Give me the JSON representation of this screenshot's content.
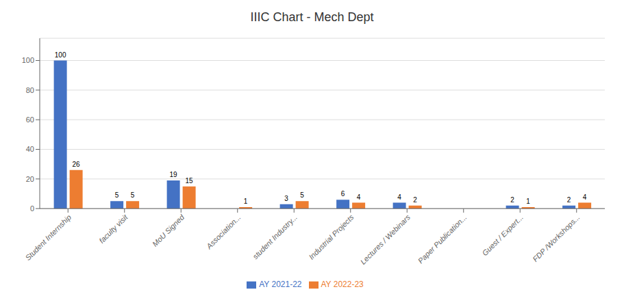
{
  "chart_data": {
    "type": "bar",
    "title": "IIIC Chart - Mech Dept",
    "categories": [
      "Student Internship",
      "faculty visit",
      "MoU Signed",
      "Association...",
      "student Industry...",
      "Industrial Projects",
      "Lectures / Webinars",
      "Paper Publication...",
      "Guest / Expert...",
      "FDP /Workshops..."
    ],
    "series": [
      {
        "name": "AY 2021-22",
        "color": "#4472C4",
        "values": [
          100,
          5,
          19,
          0,
          3,
          6,
          4,
          0,
          2,
          2
        ]
      },
      {
        "name": "AY 2022-23",
        "color": "#ED7D31",
        "values": [
          26,
          5,
          15,
          1,
          5,
          4,
          2,
          0,
          1,
          4
        ]
      }
    ],
    "ylim": [
      0,
      115
    ],
    "yticks": [
      0,
      20,
      40,
      60,
      80,
      100
    ],
    "grid": true,
    "legend": "bottom",
    "data_labels": true
  }
}
